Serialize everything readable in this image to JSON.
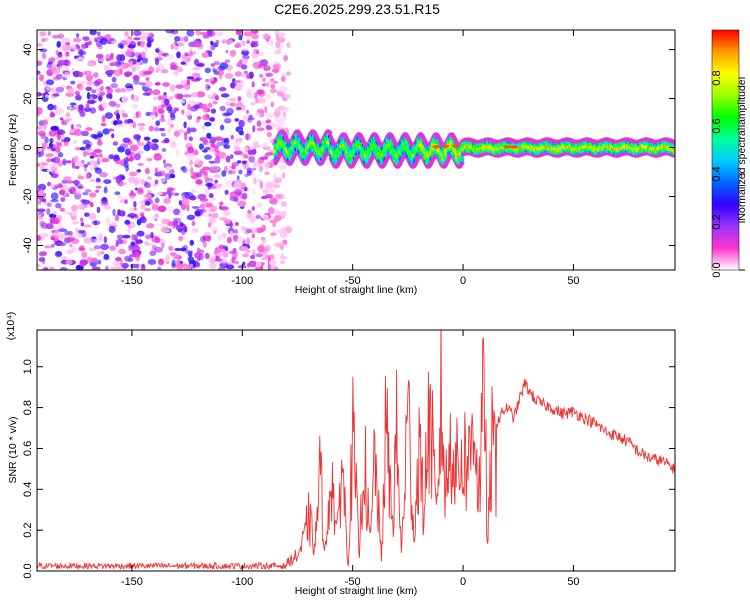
{
  "title": "C2E6.2025.299.23.51.R15",
  "chart_data": [
    {
      "type": "heatmap",
      "xlabel": "Height of straight line (km)",
      "ylabel": "Frequency (Hz)",
      "xlim": [
        -193,
        96
      ],
      "ylim": [
        -50,
        48
      ],
      "xticks": [
        -150,
        -100,
        -50,
        0,
        50
      ],
      "yticks": [
        -40,
        -20,
        0,
        20,
        40
      ],
      "colorbar": {
        "label": "Normalized spectral amplitude",
        "range": [
          0,
          1
        ],
        "ticks": [
          "0.0",
          "0.2",
          "0.4",
          "0.6",
          "0.8"
        ],
        "colors": [
          "#ffffff",
          "#ff33cc",
          "#9933ff",
          "#3300ff",
          "#0066ff",
          "#00ccff",
          "#00ff99",
          "#00ff00",
          "#99ff00",
          "#ffff00",
          "#ff9900",
          "#ff0000"
        ]
      },
      "regions": [
        {
          "name": "noise",
          "x_range": [
            -193,
            -85
          ],
          "freq_range": [
            -50,
            48
          ],
          "amplitude_range": [
            0.0,
            0.3
          ]
        },
        {
          "name": "signal-band",
          "x_range": [
            -85,
            96
          ],
          "center_freq_hz": 0,
          "width_hz": 6,
          "amplitude_range": [
            0.3,
            1.0
          ]
        }
      ]
    },
    {
      "type": "line",
      "xlabel": "Height of straight line (km)",
      "ylabel": "SNR (10 * v/v)",
      "y_multiplier": "(x10⁴)",
      "xlim": [
        -193,
        96
      ],
      "ylim": [
        0,
        1.18
      ],
      "xticks": [
        -150,
        -100,
        -50,
        0,
        50
      ],
      "yticks": [
        "0.0",
        "0.2",
        "0.4",
        "0.6",
        "0.8",
        "1.0"
      ],
      "line_color": "#ee3333",
      "series": [
        {
          "x": [
            -193,
            -150,
            -100,
            -85,
            -80,
            -75,
            -72,
            -70,
            -67,
            -65,
            -62,
            -60,
            -57,
            -55,
            -52,
            -50,
            -47,
            -45,
            -42,
            -40,
            -37,
            -35,
            -32,
            -30,
            -28,
            -25,
            -22,
            -20,
            -18,
            -15,
            -12,
            -10,
            -8,
            -5,
            -3,
            0,
            3,
            5,
            7,
            9,
            10,
            11,
            13,
            15,
            18,
            20,
            23,
            25,
            28,
            30,
            32,
            35,
            40,
            45,
            50,
            55,
            60,
            65,
            70,
            75,
            80,
            85,
            90,
            96
          ],
          "y": [
            0.01,
            0.01,
            0.01,
            0.02,
            0.05,
            0.1,
            0.2,
            0.35,
            0.15,
            0.65,
            0.1,
            0.7,
            0.2,
            0.75,
            0.05,
            0.88,
            0.1,
            0.8,
            0.15,
            0.78,
            0.06,
            0.95,
            0.3,
            0.9,
            0.1,
            1.05,
            0.2,
            0.85,
            0.4,
            1.05,
            0.3,
            1.15,
            0.5,
            0.9,
            0.65,
            0.75,
            0.7,
            1.12,
            0.45,
            1.02,
            1.18,
            0.12,
            0.8,
            0.72,
            0.78,
            0.8,
            0.75,
            0.82,
            0.92,
            0.88,
            0.85,
            0.82,
            0.8,
            0.77,
            0.78,
            0.75,
            0.72,
            0.68,
            0.66,
            0.63,
            0.58,
            0.55,
            0.54,
            0.5
          ]
        }
      ]
    }
  ]
}
